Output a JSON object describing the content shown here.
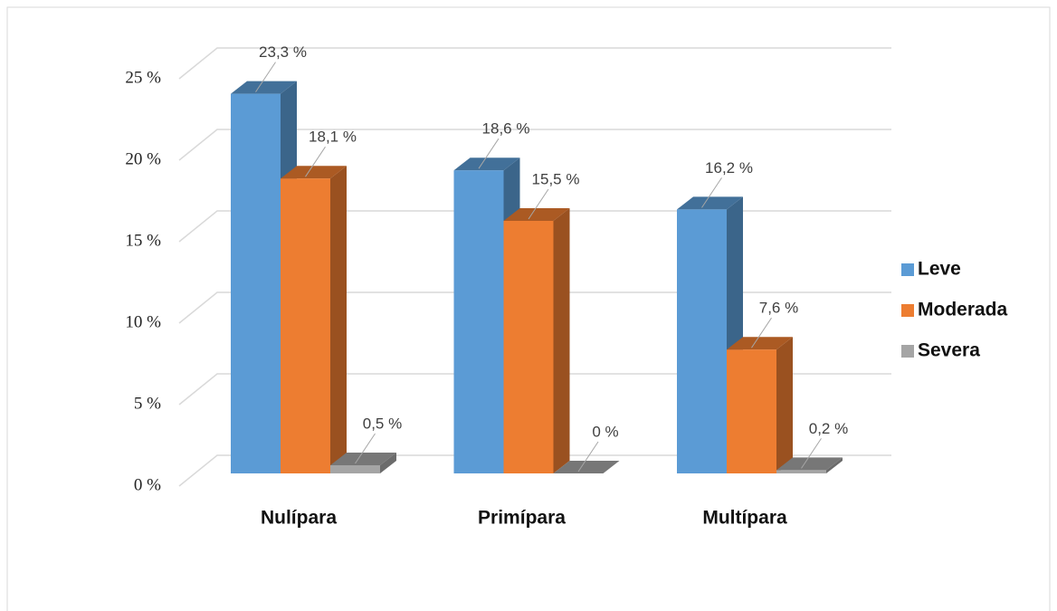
{
  "chart_data": {
    "type": "bar3d",
    "categories": [
      "Nulípara",
      "Primípara",
      "Multípara"
    ],
    "series": [
      {
        "name": "Leve",
        "color": "#5b9bd5",
        "values": [
          23.3,
          18.6,
          16.2
        ],
        "value_labels": [
          "23,3 %",
          "18,6 %",
          "16,2 %"
        ]
      },
      {
        "name": "Moderada",
        "color": "#ed7d31",
        "values": [
          18.1,
          15.5,
          7.6
        ],
        "value_labels": [
          "18,1 %",
          "15,5 %",
          "7,6 %"
        ]
      },
      {
        "name": "Severa",
        "color": "#a5a5a5",
        "values": [
          0.5,
          0,
          0.2
        ],
        "value_labels": [
          "0,5 %",
          "0 %",
          "0,2 %"
        ]
      }
    ],
    "ylim": [
      0,
      25
    ],
    "yticks": [
      {
        "value": 0,
        "label": "0 %"
      },
      {
        "value": 5,
        "label": "5 %"
      },
      {
        "value": 10,
        "label": "10 %"
      },
      {
        "value": 15,
        "label": "15 %"
      },
      {
        "value": 20,
        "label": "20 %"
      },
      {
        "value": 25,
        "label": "25 %"
      }
    ],
    "grid": true,
    "legend": "right"
  }
}
